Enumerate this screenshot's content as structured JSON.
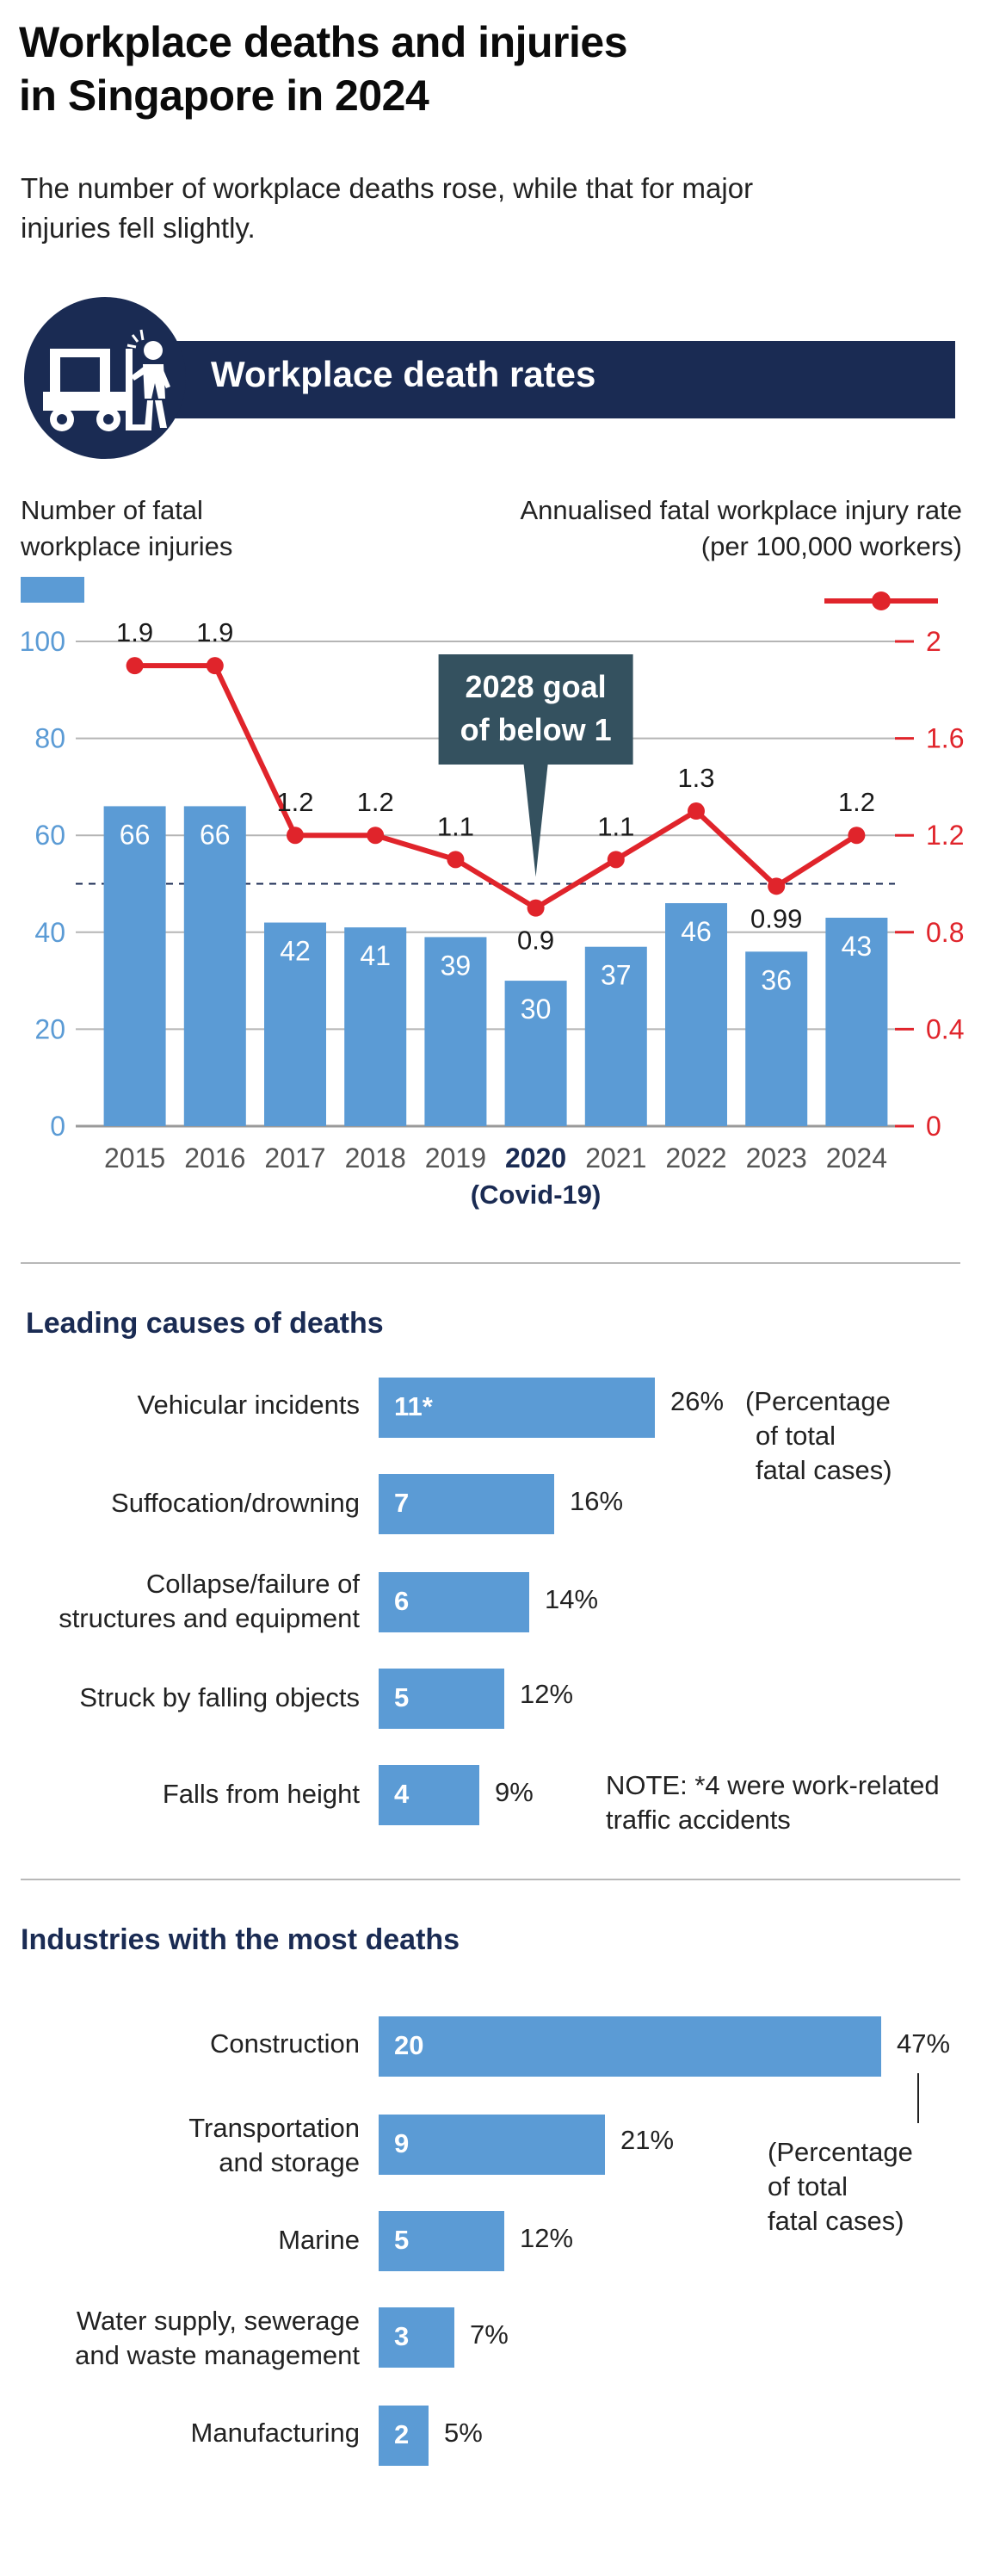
{
  "title": "Workplace deaths and injuries in Singapore in 2024",
  "subtitle": "The number of workplace deaths rose, while that for major injuries fell slightly.",
  "banner": {
    "label": "Workplace death rates",
    "icon": "forklift-worker-icon"
  },
  "colors": {
    "navy": "#1a2b53",
    "bar": "#5b9bd5",
    "line": "#e0242b",
    "goal_box": "#34515f"
  },
  "chart_data": [
    {
      "type": "bar+line",
      "left_axis_title": "Number of fatal workplace injuries",
      "right_axis_title": "Annualised fatal workplace injury rate (per 100,000 workers)",
      "categories": [
        "2015",
        "2016",
        "2017",
        "2018",
        "2019",
        "2020",
        "2021",
        "2022",
        "2023",
        "2024"
      ],
      "highlight_category": "2020",
      "highlight_note": "(Covid-19)",
      "bars": {
        "axis": "left",
        "values": [
          66,
          66,
          42,
          41,
          39,
          30,
          37,
          46,
          36,
          43
        ],
        "labels": [
          "66",
          "66",
          "42",
          "41",
          "39",
          "30",
          "37",
          "46",
          "36",
          "43"
        ]
      },
      "line": {
        "axis": "right",
        "values": [
          1.9,
          1.9,
          1.2,
          1.2,
          1.1,
          0.9,
          1.1,
          1.3,
          0.99,
          1.2
        ],
        "labels": [
          "1.9",
          "1.9",
          "1.2",
          "1.2",
          "1.1",
          "0.9",
          "1.1",
          "1.3",
          "0.99",
          "1.2"
        ]
      },
      "left_ylim": [
        0,
        100
      ],
      "left_ticks": [
        "0",
        "20",
        "40",
        "60",
        "80",
        "100"
      ],
      "right_ylim": [
        0,
        2
      ],
      "right_ticks": [
        "0",
        "0.4",
        "0.8",
        "1.2",
        "1.6",
        "2"
      ],
      "goal": {
        "value": 1,
        "axis": "right",
        "label_line1": "2028 goal",
        "label_line2": "of below 1"
      },
      "grid": true
    },
    {
      "type": "bar",
      "orientation": "horizontal",
      "title": "Leading causes of deaths",
      "categories": [
        "Vehicular incidents",
        "Suffocation/drowning",
        "Collapse/failure of structures and equipment",
        "Struck by falling objects",
        "Falls from height"
      ],
      "values": [
        11,
        7,
        6,
        5,
        4
      ],
      "value_labels": [
        "11*",
        "7",
        "6",
        "5",
        "4"
      ],
      "percent_labels": [
        "26%",
        "16%",
        "14%",
        "12%",
        "9%"
      ],
      "percent_note": "(Percentage of total fatal cases)",
      "footnote": "NOTE: *4 were work-related traffic accidents"
    },
    {
      "type": "bar",
      "orientation": "horizontal",
      "title": "Industries with the most deaths",
      "categories": [
        "Construction",
        "Transportation and storage",
        "Marine",
        "Water supply, sewerage and waste management",
        "Manufacturing"
      ],
      "values": [
        20,
        9,
        5,
        3,
        2
      ],
      "value_labels": [
        "20",
        "9",
        "5",
        "3",
        "2"
      ],
      "percent_labels": [
        "47%",
        "21%",
        "12%",
        "7%",
        "5%"
      ],
      "percent_note": "(Percentage of total fatal cases)"
    }
  ],
  "cause_lines": {
    "vehicular": [
      "Vehicular incidents"
    ],
    "suffocation": [
      "Suffocation/drowning"
    ],
    "collapse": [
      "Collapse/failure of",
      "structures and equipment"
    ],
    "struck": [
      "Struck by falling objects"
    ],
    "falls": [
      "Falls from height"
    ]
  },
  "cause_note_lines": [
    "(Percentage",
    "of total",
    "fatal cases)"
  ],
  "footnote_lines": [
    "NOTE: *4 were work-related",
    "traffic accidents"
  ],
  "industry_lines": {
    "construction": [
      "Construction"
    ],
    "transport": [
      "Transportation",
      "and storage"
    ],
    "marine": [
      "Marine"
    ],
    "water": [
      "Water supply, sewerage",
      "and waste management"
    ],
    "manufacturing": [
      "Manufacturing"
    ]
  },
  "industry_note_lines": [
    "(Percentage",
    "of total",
    "fatal cases)"
  ],
  "left_title_lines": [
    "Number of fatal",
    "workplace injuries"
  ],
  "right_title_lines": [
    "Annualised fatal workplace injury rate",
    "(per 100,000 workers)"
  ],
  "title_lines": [
    "Workplace deaths and injuries",
    "in Singapore in 2024"
  ],
  "subtitle_lines": [
    "The number of workplace deaths rose, while that for major",
    "injuries fell slightly."
  ]
}
